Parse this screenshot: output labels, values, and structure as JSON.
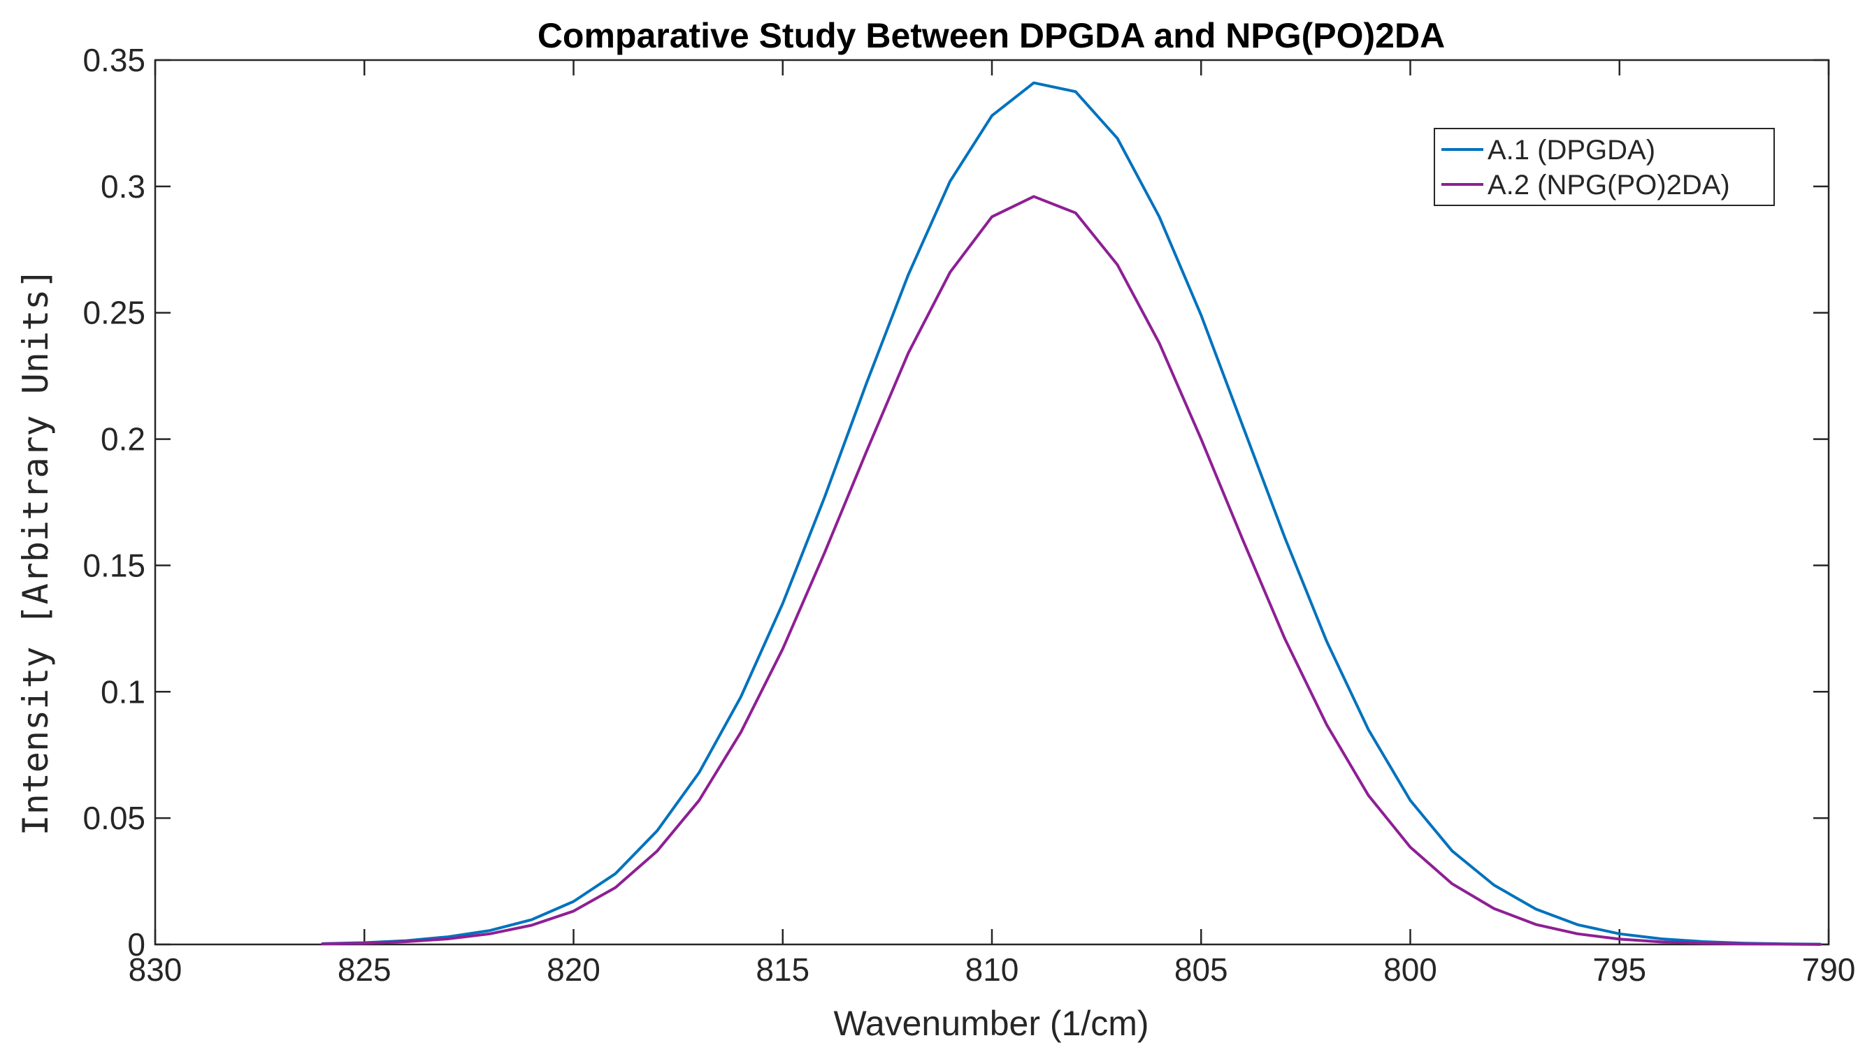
{
  "chart_data": {
    "type": "line",
    "title": "Comparative Study Between DPGDA and NPG(PO)2DA",
    "xlabel": "Wavenumber (1/cm)",
    "ylabel": "Intensity [Arbitrary Units]",
    "xlim": [
      830,
      790
    ],
    "x_reversed": true,
    "ylim": [
      0,
      0.35
    ],
    "xticks": [
      830,
      825,
      820,
      815,
      810,
      805,
      800,
      795,
      790
    ],
    "xtick_labels": [
      "830",
      "825",
      "820",
      "815",
      "810",
      "805",
      "800",
      "795",
      "790"
    ],
    "yticks": [
      0,
      0.05,
      0.1,
      0.15,
      0.2,
      0.25,
      0.3,
      0.35
    ],
    "ytick_labels": [
      "0",
      "0.05",
      "0.1",
      "0.15",
      "0.2",
      "0.25",
      "0.3",
      "0.35"
    ],
    "grid": false,
    "legend_position": "top-right",
    "x": [
      826.0,
      825.0,
      824.0,
      823.0,
      822.0,
      821.0,
      820.0,
      819.0,
      818.0,
      817.0,
      816.0,
      815.0,
      814.0,
      813.0,
      812.0,
      811.0,
      810.0,
      809.0,
      808.0,
      807.0,
      806.0,
      805.0,
      804.0,
      803.0,
      802.0,
      801.0,
      800.0,
      799.0,
      798.0,
      797.0,
      796.0,
      795.0,
      794.0,
      793.0,
      792.0,
      791.0,
      790.2
    ],
    "series": [
      {
        "name": "A.1 (DPGDA)",
        "color": "#0072BD",
        "values": [
          0.0003,
          0.0007,
          0.0015,
          0.003,
          0.0055,
          0.0098,
          0.017,
          0.028,
          0.045,
          0.068,
          0.098,
          0.135,
          0.177,
          0.222,
          0.265,
          0.302,
          0.328,
          0.341,
          0.3375,
          0.319,
          0.288,
          0.249,
          0.205,
          0.161,
          0.12,
          0.085,
          0.057,
          0.037,
          0.0235,
          0.014,
          0.0078,
          0.0042,
          0.0022,
          0.0011,
          0.0005,
          0.0002,
          0.0001
        ]
      },
      {
        "name": "A.2 (NPG(PO)2DA)",
        "color": "#8E1F94",
        "values": [
          0.0002,
          0.0005,
          0.0011,
          0.0022,
          0.0042,
          0.0076,
          0.0132,
          0.0225,
          0.037,
          0.057,
          0.084,
          0.117,
          0.155,
          0.195,
          0.234,
          0.266,
          0.288,
          0.296,
          0.2895,
          0.269,
          0.238,
          0.2,
          0.16,
          0.121,
          0.087,
          0.059,
          0.0385,
          0.024,
          0.0142,
          0.0079,
          0.0042,
          0.0021,
          0.001,
          0.0005,
          0.0002,
          0.0001,
          0.0
        ]
      }
    ]
  }
}
